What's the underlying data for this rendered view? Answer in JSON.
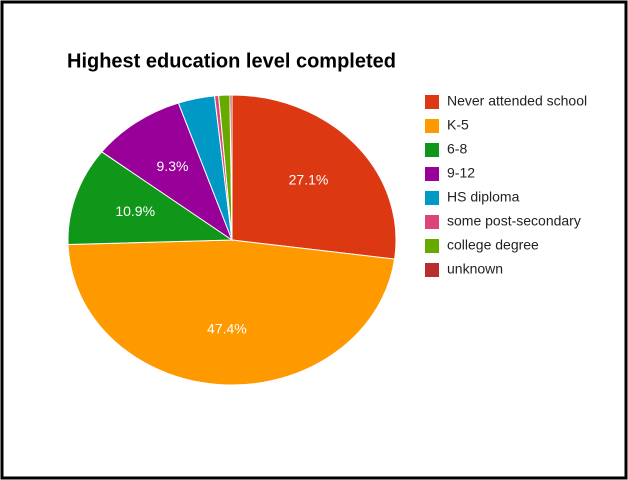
{
  "chart_data": {
    "type": "pie",
    "title": "Highest education level completed",
    "categories": [
      "Never attended school",
      "K-5",
      "6-8",
      "9-12",
      "HS diploma",
      "some post-secondary",
      "college degree",
      "unknown"
    ],
    "values": [
      27.1,
      47.4,
      10.9,
      9.3,
      3.6,
      0.4,
      1.1,
      0.2
    ],
    "value_labels": [
      "27.1%",
      "47.4%",
      "10.9%",
      "9.3%",
      null,
      null,
      null,
      null
    ],
    "colors": [
      "#dc3912",
      "#ff9900",
      "#109618",
      "#990099",
      "#0099c6",
      "#dd4477",
      "#66aa00",
      "#b82e2e"
    ],
    "legend": "right"
  }
}
